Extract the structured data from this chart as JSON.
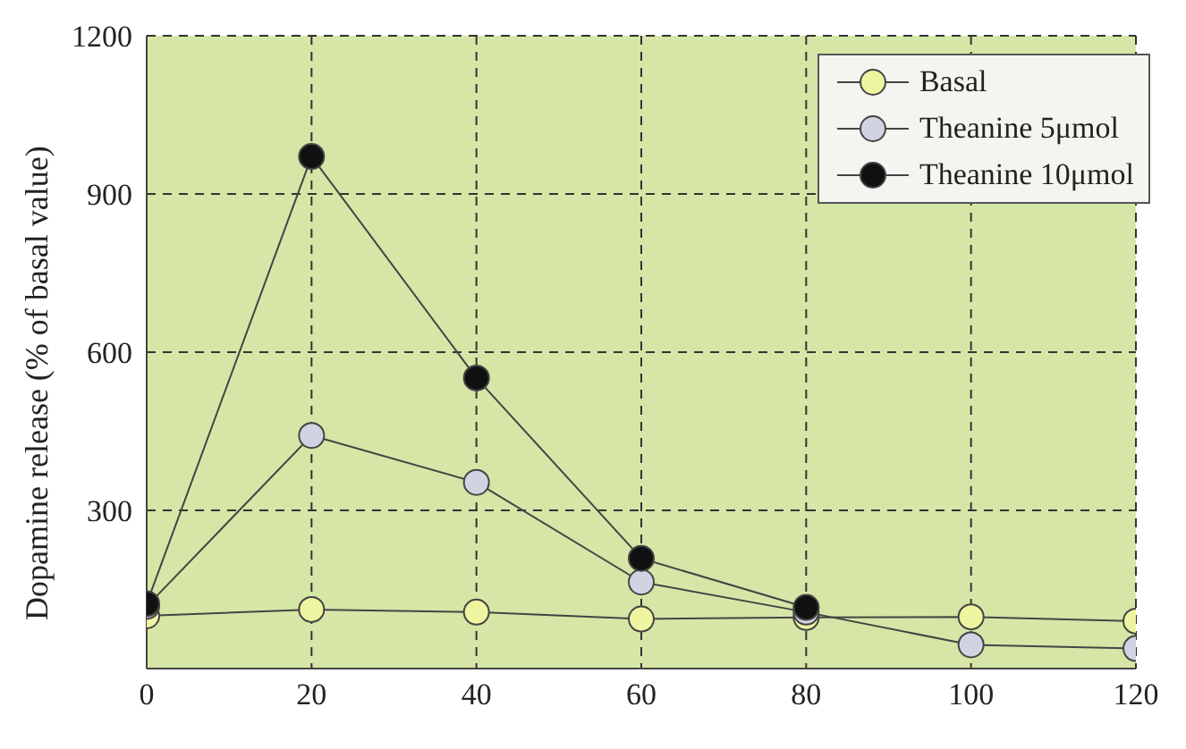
{
  "chart_data": {
    "type": "line",
    "ylabel": "Dopamine release (% of basal value)",
    "x": [
      0,
      20,
      40,
      60,
      80,
      100,
      120
    ],
    "series": [
      {
        "name": "Basal",
        "color": "#eef5a0",
        "values": [
          100,
          112,
          107,
          94,
          97,
          98,
          90
        ]
      },
      {
        "name": "Theanine 5μmol",
        "color": "#d2d3e2",
        "values": [
          118,
          442,
          353,
          164,
          107,
          45,
          38
        ]
      },
      {
        "name": "Theanine 10μmol",
        "color": "#111111",
        "values": [
          123,
          971,
          551,
          209,
          116,
          null,
          null
        ]
      }
    ],
    "xlim": [
      0,
      120
    ],
    "xticks": [
      0,
      20,
      40,
      60,
      80,
      100,
      120
    ],
    "ylim": [
      0,
      1200
    ],
    "yticks": [
      {
        "value": 0,
        "label": null
      },
      300,
      600,
      900,
      1200
    ],
    "grid": true,
    "legend": "top right",
    "marker": "circle",
    "line_style": "solid"
  }
}
